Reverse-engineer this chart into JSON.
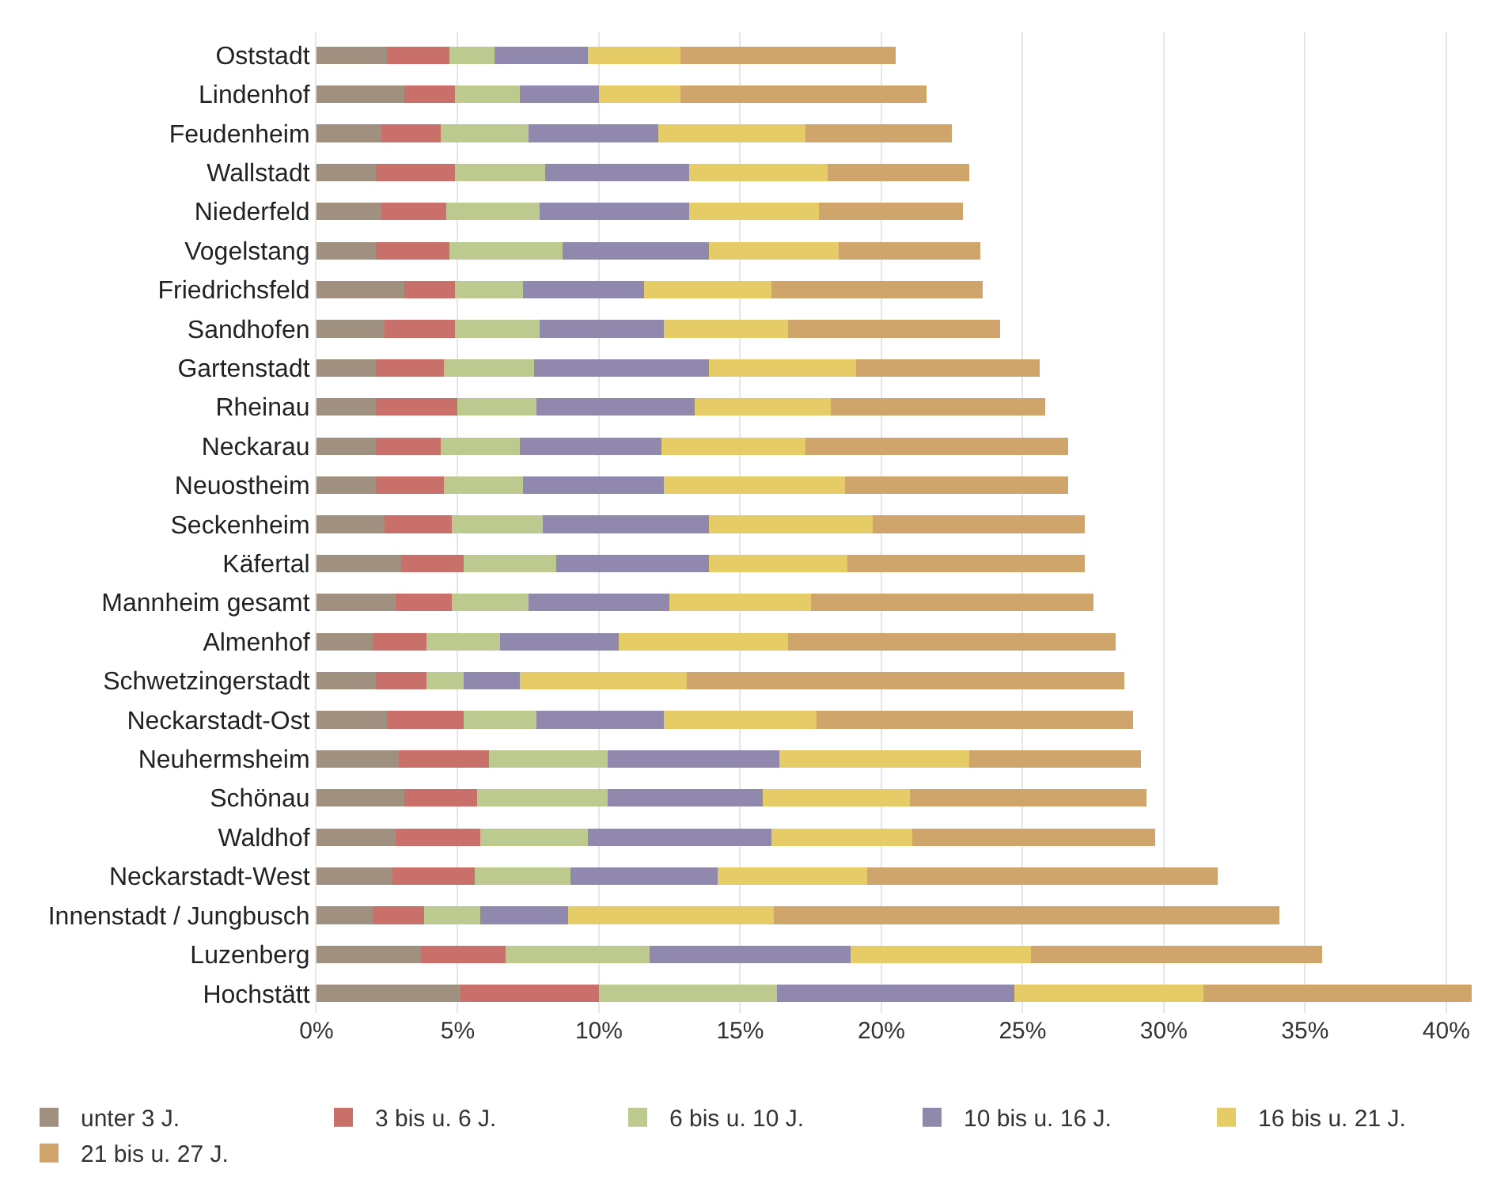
{
  "chart_data": {
    "type": "bar",
    "orientation": "horizontal",
    "stacked": true,
    "categories": [
      "Oststadt",
      "Lindenhof",
      "Feudenheim",
      "Wallstadt",
      "Niederfeld",
      "Vogelstang",
      "Friedrichsfeld",
      "Sandhofen",
      "Gartenstadt",
      "Rheinau",
      "Neckarau",
      "Neuostheim",
      "Seckenheim",
      "Käfertal",
      "Mannheim gesamt",
      "Almenhof",
      "Schwetzingerstadt",
      "Neckarstadt-Ost",
      "Neuhermsheim",
      "Schönau",
      "Waldhof",
      "Neckarstadt-West",
      "Innenstadt / Jungbusch",
      "Luzenberg",
      "Hochstätt"
    ],
    "series": [
      {
        "name": "unter 3 J.",
        "color": "#a09080",
        "values": [
          2.5,
          3.1,
          2.3,
          2.1,
          2.3,
          2.1,
          3.1,
          2.4,
          2.1,
          2.1,
          2.1,
          2.1,
          2.4,
          3.0,
          2.8,
          2.0,
          2.1,
          2.5,
          2.9,
          3.1,
          2.8,
          2.7,
          2.0,
          3.7,
          5.1
        ]
      },
      {
        "name": "3 bis u. 6 J.",
        "color": "#c9706a",
        "values": [
          2.2,
          1.8,
          2.1,
          2.8,
          2.3,
          2.6,
          1.8,
          2.5,
          2.4,
          2.9,
          2.3,
          2.4,
          2.4,
          2.2,
          2.0,
          1.9,
          1.8,
          2.7,
          3.2,
          2.6,
          3.0,
          2.9,
          1.8,
          3.0,
          4.9
        ]
      },
      {
        "name": "6 bis u. 10 J.",
        "color": "#bcc98f",
        "values": [
          1.6,
          2.3,
          3.1,
          3.2,
          3.3,
          4.0,
          2.4,
          3.0,
          3.2,
          2.8,
          2.8,
          2.8,
          3.2,
          3.3,
          2.7,
          2.6,
          1.3,
          2.6,
          4.2,
          4.6,
          3.8,
          3.4,
          2.0,
          5.1,
          6.3
        ]
      },
      {
        "name": "10 bis u. 16 J.",
        "color": "#9189ad",
        "values": [
          3.3,
          2.8,
          4.6,
          5.1,
          5.3,
          5.2,
          4.3,
          4.4,
          6.2,
          5.6,
          5.0,
          5.0,
          5.9,
          5.4,
          5.0,
          4.2,
          2.0,
          4.5,
          6.1,
          5.5,
          6.5,
          5.2,
          3.1,
          7.1,
          8.4
        ]
      },
      {
        "name": "16 bis u. 21 J.",
        "color": "#e5cc66",
        "values": [
          3.3,
          2.9,
          5.2,
          4.9,
          4.6,
          4.6,
          4.5,
          4.4,
          5.2,
          4.8,
          5.1,
          6.4,
          5.8,
          4.9,
          5.0,
          6.0,
          5.9,
          5.4,
          6.7,
          5.2,
          5.0,
          5.3,
          7.3,
          6.4,
          6.7
        ]
      },
      {
        "name": "21 bis u. 27 J.",
        "color": "#cfa56c",
        "values": [
          7.6,
          8.7,
          5.2,
          5.0,
          5.1,
          5.0,
          7.5,
          7.5,
          6.5,
          7.6,
          9.3,
          7.9,
          7.5,
          8.4,
          10.0,
          11.6,
          15.5,
          11.2,
          6.1,
          8.4,
          8.6,
          12.4,
          17.9,
          10.3,
          9.5
        ]
      }
    ],
    "xlim": [
      0,
      40.9
    ],
    "xticks": [
      {
        "value": 0,
        "label": "0%"
      },
      {
        "value": 5,
        "label": "5%"
      },
      {
        "value": 10,
        "label": "10%"
      },
      {
        "value": 15,
        "label": "15%"
      },
      {
        "value": 20,
        "label": "20%"
      },
      {
        "value": 25,
        "label": "25%"
      },
      {
        "value": 30,
        "label": "30%"
      },
      {
        "value": 35,
        "label": "35%"
      },
      {
        "value": 40,
        "label": "40%"
      }
    ],
    "grid": "x",
    "legend": "bottom left"
  }
}
